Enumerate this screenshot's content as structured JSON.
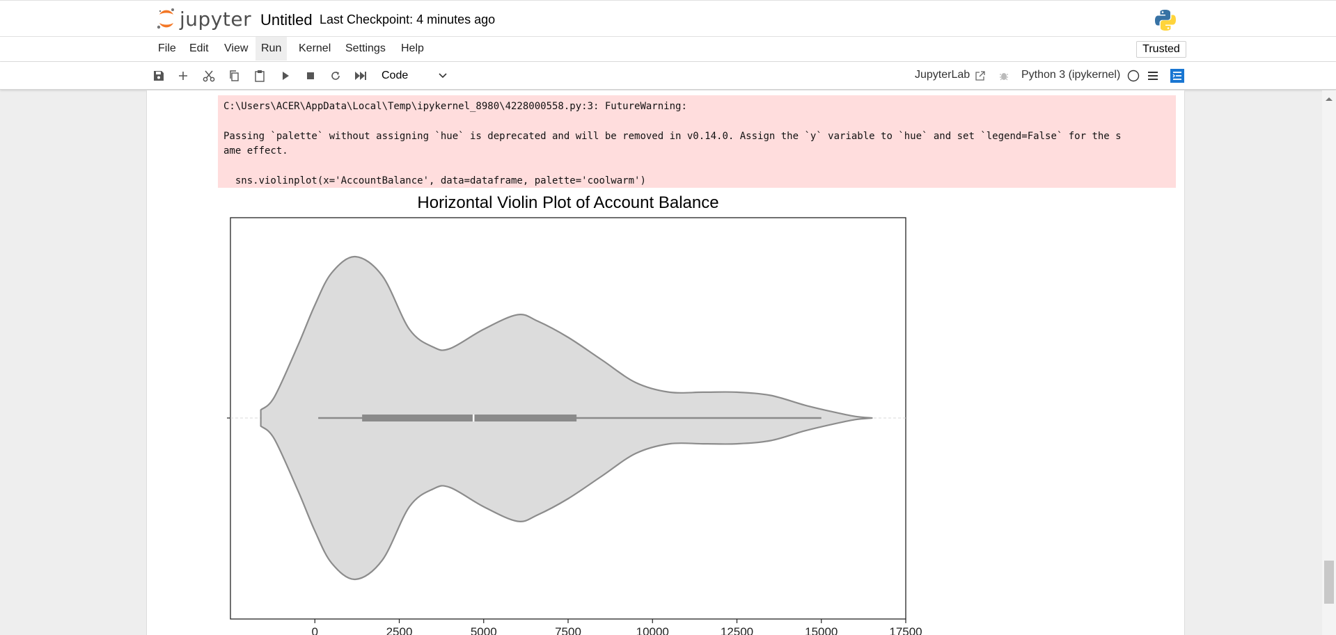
{
  "header": {
    "logo_text": "jupyter",
    "notebook_title": "Untitled",
    "checkpoint": "Last Checkpoint: 4 minutes ago"
  },
  "menu": {
    "items": [
      "File",
      "Edit",
      "View",
      "Run",
      "Kernel",
      "Settings",
      "Help"
    ],
    "trusted": "Trusted"
  },
  "toolbar": {
    "icons": [
      "save-icon",
      "add-cell-icon",
      "cut-icon",
      "copy-icon",
      "paste-icon",
      "run-icon",
      "stop-icon",
      "restart-icon",
      "fast-forward-icon"
    ],
    "cell_type": "Code",
    "jupyterlab_label": "JupyterLab",
    "kernel_name": "Python 3 (ipykernel)"
  },
  "output": {
    "stderr_lines": [
      "C:\\Users\\ACER\\AppData\\Local\\Temp\\ipykernel_8980\\4228000558.py:3: FutureWarning:",
      "Passing `palette` without assigning `hue` is deprecated and will be removed in v0.14.0. Assign the `y` variable to `hue` and set `legend=False` for the s",
      "ame effect.",
      "  sns.violinplot(x='AccountBalance', data=dataframe, palette='coolwarm')"
    ]
  },
  "chart_data": {
    "type": "violin",
    "orientation": "horizontal",
    "title": "Horizontal Violin Plot of Account Balance",
    "xlabel": "",
    "ylabel": "",
    "xlim": [
      -2500,
      17500
    ],
    "xticks": [
      "0",
      "2500",
      "5000",
      "7500",
      "10000",
      "12500",
      "15000",
      "17500"
    ],
    "fill_color": "#dcdcdc",
    "edge_color": "#8c8c8c",
    "density_profile": {
      "x": [
        -1600,
        -1200,
        -500,
        0,
        500,
        1200,
        2000,
        2800,
        3500,
        4000,
        5000,
        6000,
        6600,
        7500,
        8500,
        9500,
        10500,
        11500,
        12500,
        13500,
        14500,
        15300,
        16000,
        16500
      ],
      "half_width_relative": [
        0.05,
        0.13,
        0.45,
        0.7,
        0.9,
        1.0,
        0.88,
        0.55,
        0.44,
        0.43,
        0.55,
        0.64,
        0.6,
        0.5,
        0.36,
        0.22,
        0.16,
        0.16,
        0.16,
        0.14,
        0.08,
        0.04,
        0.01,
        0.0
      ]
    },
    "box": {
      "whisker_low": 100,
      "q1": 1400,
      "median": 4700,
      "q3": 7750,
      "whisker_high": 15000
    }
  }
}
